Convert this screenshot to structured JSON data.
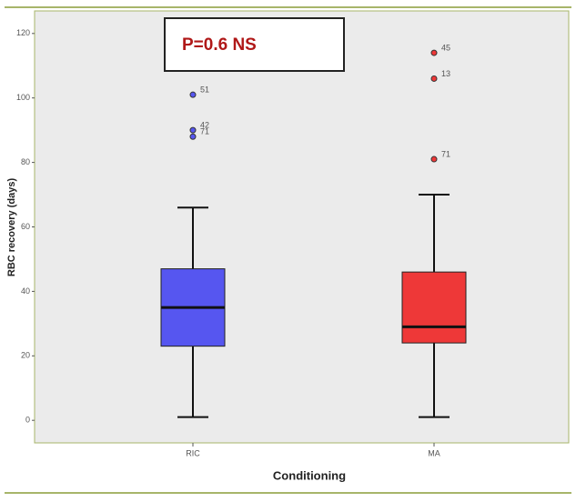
{
  "chart_data": {
    "type": "box",
    "annotation": "P=0.6 NS",
    "x_label": "Conditioning",
    "y_label": "RBC recovery (days)",
    "categories": [
      "RIC",
      "MA"
    ],
    "boxes": [
      {
        "color": "#5656f0",
        "whisker_low": 1,
        "q1": 23,
        "median": 35,
        "q3": 47,
        "whisker_high": 66,
        "outliers": [
          {
            "value": 101,
            "label": "51"
          },
          {
            "value": 90,
            "label": "42"
          },
          {
            "value": 88,
            "label": "71"
          }
        ]
      },
      {
        "color": "#ee3838",
        "whisker_low": 1,
        "q1": 24,
        "median": 29,
        "q3": 46,
        "whisker_high": 70,
        "outliers": [
          {
            "value": 114,
            "label": "45"
          },
          {
            "value": 106,
            "label": "13"
          },
          {
            "value": 81,
            "label": "71"
          }
        ]
      }
    ],
    "ylim": [
      -7,
      127
    ],
    "yticks": [
      0,
      20,
      40,
      60,
      80,
      100,
      120
    ]
  }
}
